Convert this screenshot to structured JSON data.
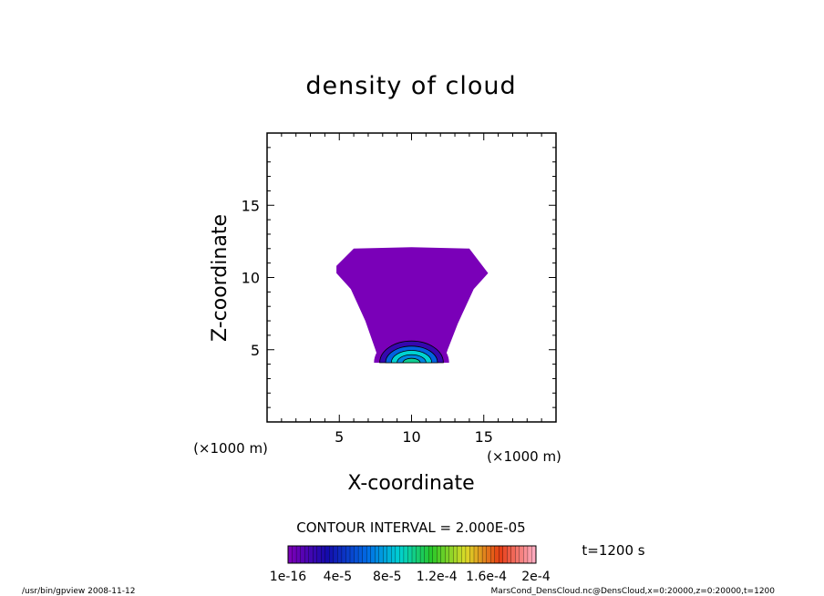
{
  "chart_data": {
    "type": "filled-contour",
    "title": "density of cloud",
    "xlabel": "X-coordinate",
    "ylabel": "Z-coordinate",
    "x_unit": "(×1000 m)",
    "y_unit": "(×1000 m)",
    "xlim": [
      0,
      20
    ],
    "ylim": [
      0,
      20
    ],
    "xticks": [
      5,
      10,
      15
    ],
    "yticks": [
      5,
      10,
      15
    ],
    "contour_interval": "CONTOUR INTERVAL = 2.000E-05",
    "time_label": "t=1200 s",
    "colorbar": {
      "range": [
        1e-16,
        0.0002
      ],
      "tick_labels": [
        "1e-16",
        "4e-5",
        "8e-5",
        "1.2e-4",
        "1.6e-4",
        "2e-4"
      ]
    },
    "cloud_outline": [
      [
        4.8,
        10.8
      ],
      [
        6.0,
        12.0
      ],
      [
        10.0,
        12.1
      ],
      [
        14.0,
        12.0
      ],
      [
        15.3,
        10.3
      ],
      [
        14.3,
        9.2
      ],
      [
        13.2,
        6.8
      ],
      [
        12.5,
        5.0
      ],
      [
        12.2,
        4.1
      ],
      [
        7.8,
        4.1
      ],
      [
        7.5,
        5.0
      ],
      [
        6.8,
        7.0
      ],
      [
        5.8,
        9.2
      ],
      [
        4.8,
        10.3
      ]
    ],
    "core_levels": [
      {
        "rx": 2.6,
        "rz": 1.9,
        "level": 1e-16
      },
      {
        "rx": 2.2,
        "rz": 1.5,
        "level": 2e-05
      },
      {
        "rx": 1.8,
        "rz": 1.15,
        "level": 6e-05
      },
      {
        "rx": 1.4,
        "rz": 0.85,
        "level": 9e-05
      },
      {
        "rx": 1.0,
        "rz": 0.55,
        "level": 7e-05
      },
      {
        "rx": 0.6,
        "rz": 0.3,
        "level": 0.0001
      }
    ],
    "core_center": [
      10.0,
      4.1
    ]
  },
  "footer": {
    "left": "/usr/bin/gpview   2008-11-12",
    "right": "MarsCond_DensCloud.nc@DensCloud,x=0:20000,z=0:20000,t=1200"
  }
}
